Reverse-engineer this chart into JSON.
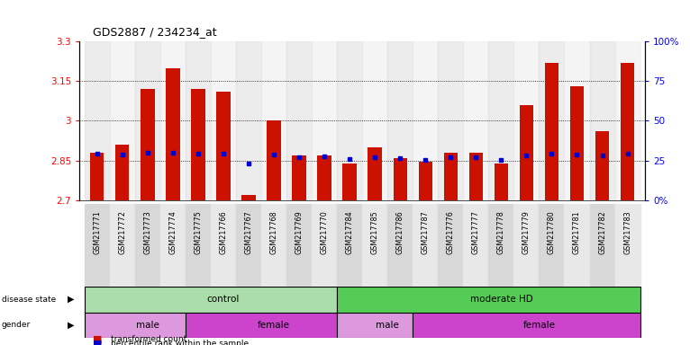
{
  "title": "GDS2887 / 234234_at",
  "samples": [
    "GSM217771",
    "GSM217772",
    "GSM217773",
    "GSM217774",
    "GSM217775",
    "GSM217766",
    "GSM217767",
    "GSM217768",
    "GSM217769",
    "GSM217770",
    "GSM217784",
    "GSM217785",
    "GSM217786",
    "GSM217787",
    "GSM217776",
    "GSM217777",
    "GSM217778",
    "GSM217779",
    "GSM217780",
    "GSM217781",
    "GSM217782",
    "GSM217783"
  ],
  "bar_values": [
    2.88,
    2.91,
    3.12,
    3.2,
    3.12,
    3.11,
    2.72,
    3.0,
    2.87,
    2.87,
    2.84,
    2.9,
    2.86,
    2.845,
    2.88,
    2.88,
    2.838,
    3.06,
    3.22,
    3.13,
    2.96,
    3.22
  ],
  "blue_values": [
    2.875,
    2.873,
    2.878,
    2.878,
    2.877,
    2.877,
    2.838,
    2.873,
    2.862,
    2.867,
    2.855,
    2.862,
    2.857,
    2.852,
    2.861,
    2.861,
    2.853,
    2.868,
    2.877,
    2.873,
    2.868,
    2.877
  ],
  "y_min": 2.7,
  "y_max": 3.3,
  "y_ticks_left": [
    2.7,
    2.85,
    3.0,
    3.15,
    3.3
  ],
  "y_ticks_left_labels": [
    "2.7",
    "2.85",
    "3",
    "3.15",
    "3.3"
  ],
  "y_ticks_right_vals": [
    0,
    25,
    50,
    75,
    100
  ],
  "y_ticks_right_labels": [
    "0%",
    "25",
    "50",
    "75",
    "100%"
  ],
  "gridlines": [
    2.85,
    3.0,
    3.15
  ],
  "bar_color": "#cc1100",
  "blue_color": "#0000cc",
  "disease_state_groups": [
    {
      "label": "control",
      "start": 0,
      "end": 10,
      "color": "#aaddaa"
    },
    {
      "label": "moderate HD",
      "start": 10,
      "end": 22,
      "color": "#55cc55"
    }
  ],
  "gender_groups": [
    {
      "label": "male",
      "start": 0,
      "end": 4,
      "color": "#dd99dd"
    },
    {
      "label": "female",
      "start": 4,
      "end": 10,
      "color": "#cc44cc"
    },
    {
      "label": "male",
      "start": 10,
      "end": 13,
      "color": "#dd99dd"
    },
    {
      "label": "female",
      "start": 13,
      "end": 22,
      "color": "#cc44cc"
    }
  ],
  "legend_items": [
    {
      "label": "transformed count",
      "color": "#cc1100",
      "marker": "s"
    },
    {
      "label": "percentile rank within the sample",
      "color": "#0000cc",
      "marker": "s"
    }
  ]
}
